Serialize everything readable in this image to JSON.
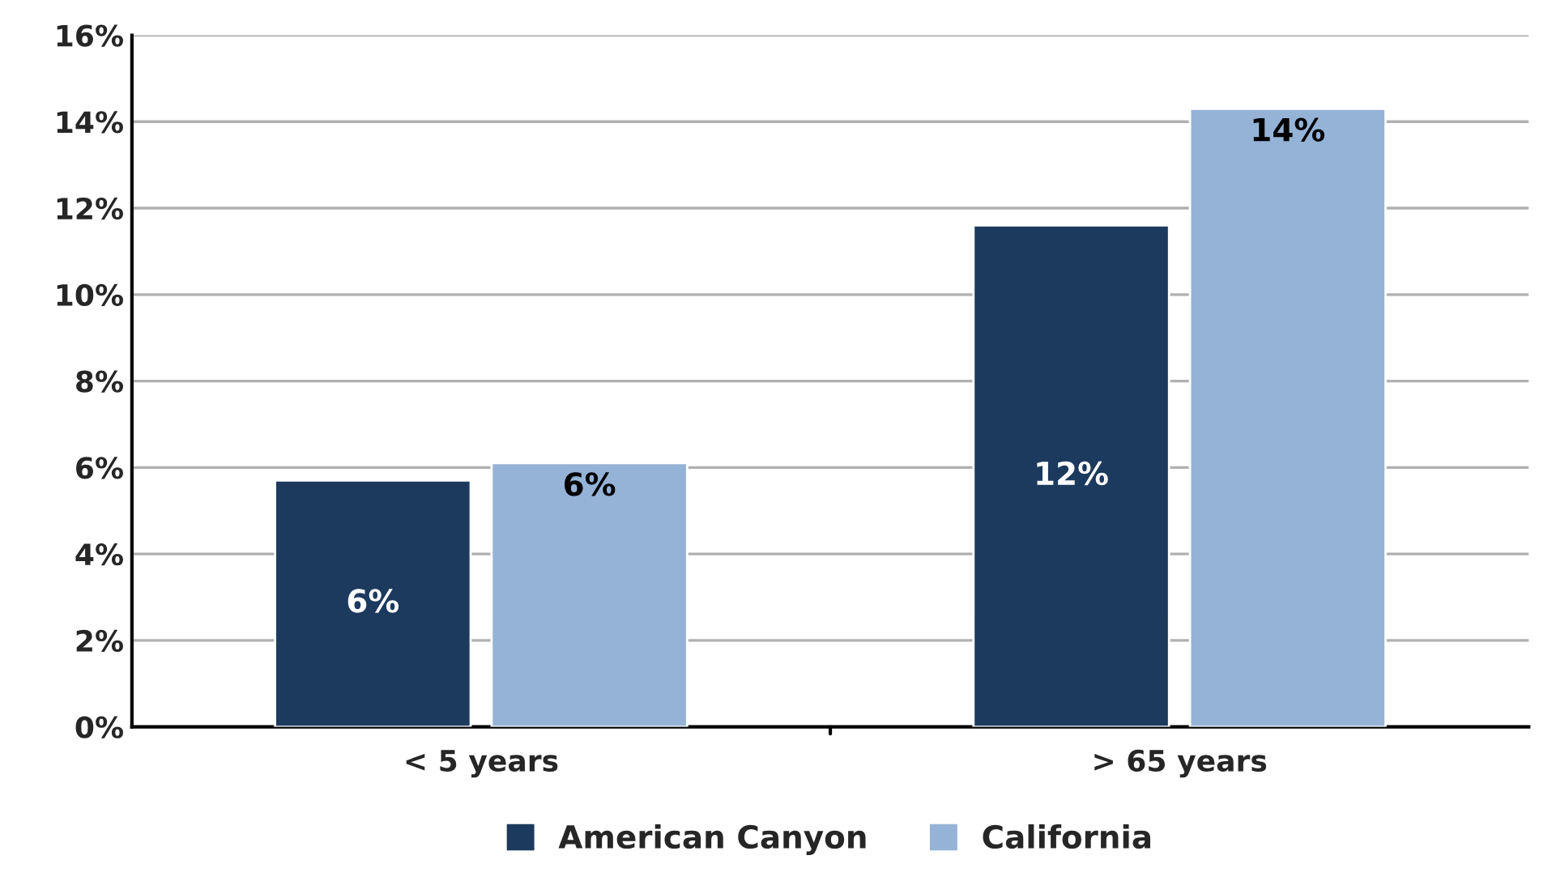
{
  "chart_data": {
    "type": "bar",
    "categories": [
      "< 5 years",
      "> 65 years"
    ],
    "series": [
      {
        "name": "American Canyon",
        "color": "#1c3a5e",
        "values": [
          5.7,
          11.6
        ],
        "value_labels": [
          "6%",
          "12%"
        ]
      },
      {
        "name": "California",
        "color": "#95b3d7",
        "values": [
          6.1,
          14.3
        ],
        "value_labels": [
          "6%",
          "14%"
        ]
      }
    ],
    "ylim": [
      0,
      16
    ],
    "yticks": [
      {
        "value": 0,
        "label": "0%"
      },
      {
        "value": 2,
        "label": "2%"
      },
      {
        "value": 4,
        "label": "4%"
      },
      {
        "value": 6,
        "label": "6%"
      },
      {
        "value": 8,
        "label": "8%"
      },
      {
        "value": 10,
        "label": "10%"
      },
      {
        "value": 12,
        "label": "12%"
      },
      {
        "value": 14,
        "label": "14%"
      },
      {
        "value": 16,
        "label": "16%"
      }
    ],
    "grid": "y",
    "legend": "bottom"
  }
}
